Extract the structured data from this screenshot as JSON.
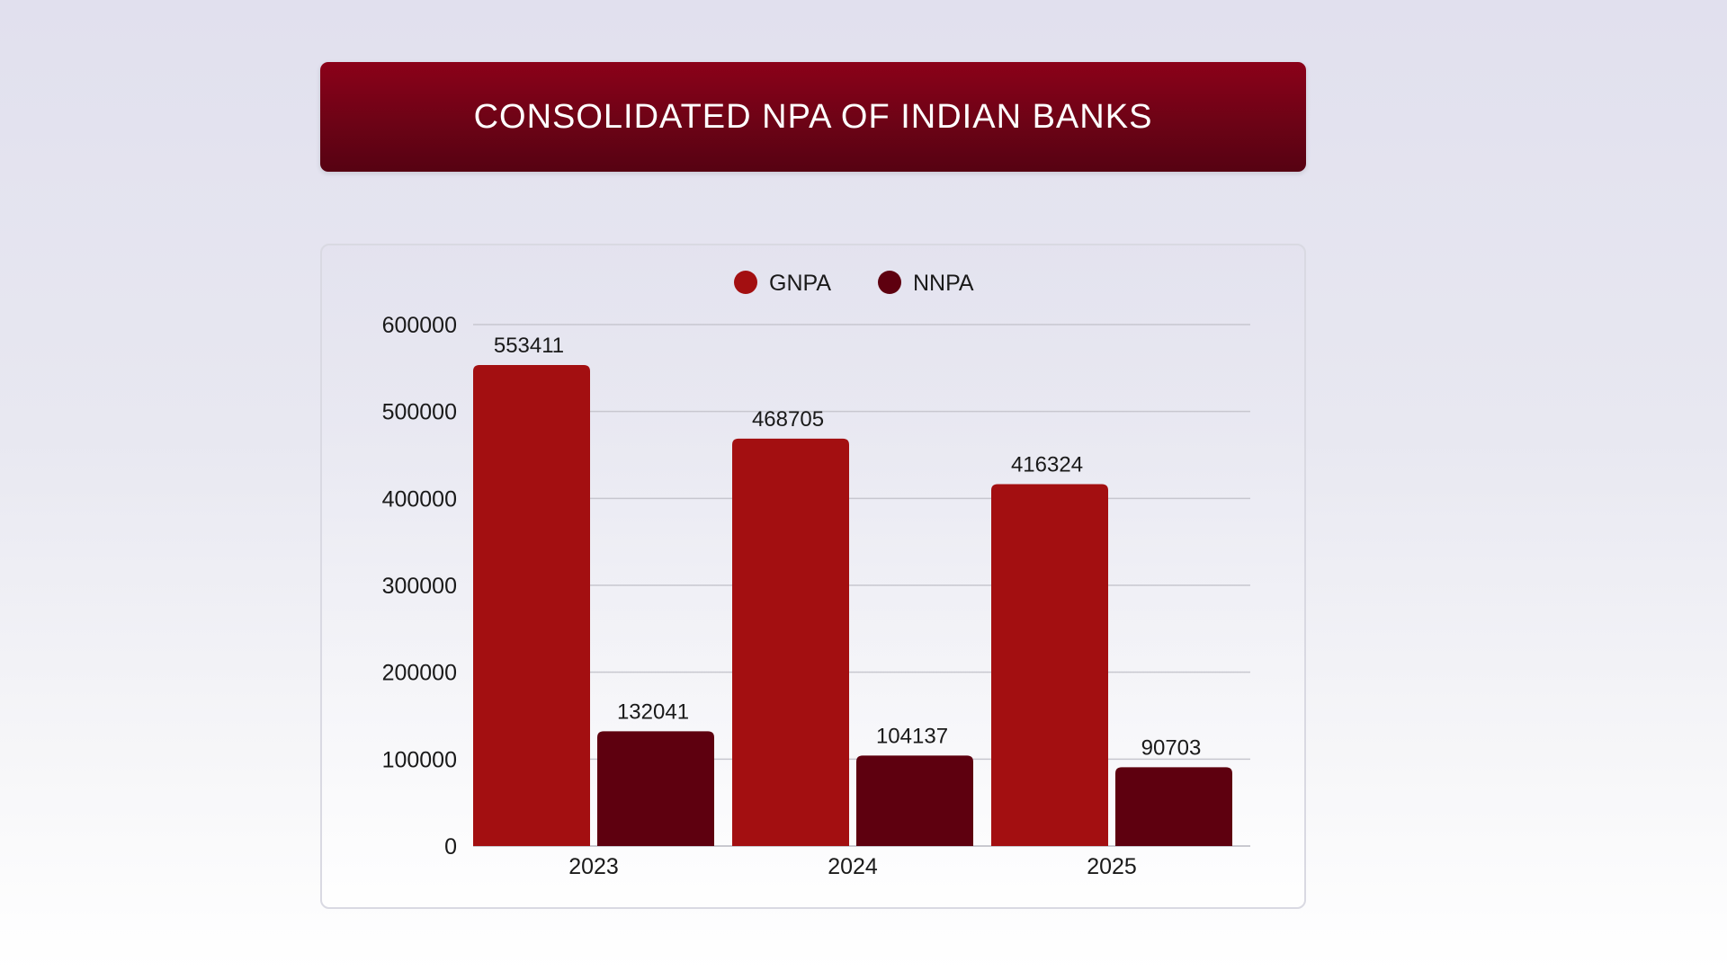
{
  "header": {
    "title": "CONSOLIDATED NPA OF INDIAN BANKS"
  },
  "chart_data": {
    "type": "bar",
    "title": "CONSOLIDATED NPA OF INDIAN BANKS",
    "categories": [
      "2023",
      "2024",
      "2025"
    ],
    "series": [
      {
        "name": "GNPA",
        "values": [
          553411,
          468705,
          416324
        ],
        "color": "#a30f11"
      },
      {
        "name": "NNPA",
        "values": [
          132041,
          104137,
          90703
        ],
        "color": "#5e000f"
      }
    ],
    "ylim": [
      0,
      600000
    ],
    "yticks": [
      "0",
      "100000",
      "200000",
      "300000",
      "400000",
      "500000",
      "600000"
    ],
    "value_labels": [
      [
        "553411",
        "468705",
        "416324"
      ],
      [
        "132041",
        "104137",
        "90703"
      ]
    ],
    "grid": true,
    "legend_position": "top-center",
    "xlabel": "",
    "ylabel": ""
  }
}
